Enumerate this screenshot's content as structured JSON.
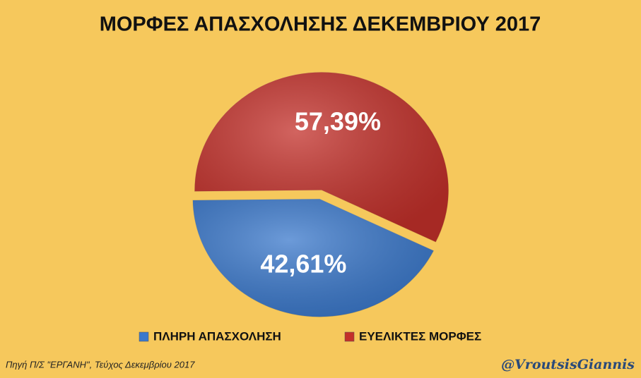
{
  "chart_data": {
    "type": "pie",
    "title": "ΜΟΡΦΕΣ ΑΠΑΣΧΟΛΗΣΗΣ ΔΕΚΕΜΒΡΙΟΥ 2017",
    "categories": [
      "ΠΛΗΡΗ ΑΠΑΣΧΟΛΗΣΗ",
      "ΕΥΕΛΙΚΤΕΣ ΜΟΡΦΕΣ"
    ],
    "values": [
      42.61,
      57.39
    ],
    "value_labels": [
      "42,61%",
      "57,39%"
    ],
    "colors": [
      "#3b79cc",
      "#c3302a"
    ],
    "legend": "bottom",
    "source": "Πηγή Π/Σ \"ΕΡΓΑΝΗ\", Τεύχος Δεκεμβρίου 2017",
    "watermark": "@VroutsisGiannis"
  }
}
